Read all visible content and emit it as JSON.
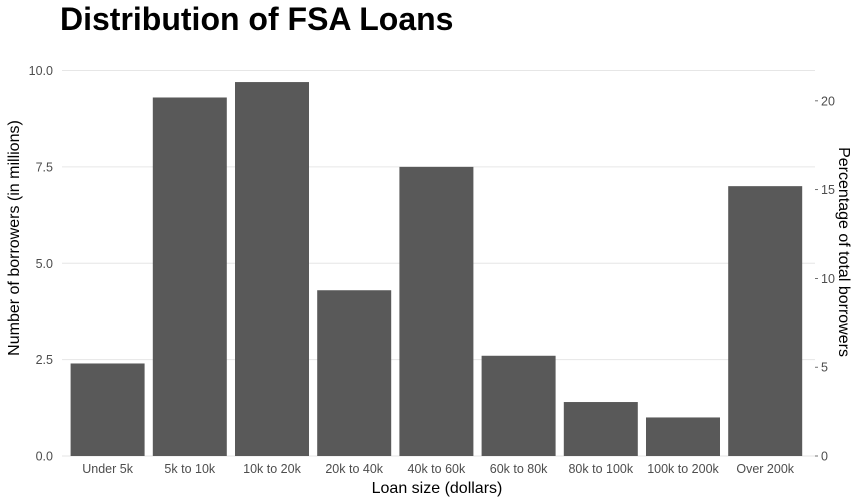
{
  "chart_data": {
    "type": "bar",
    "title": "Distribution of FSA Loans",
    "xlabel": "Loan size (dollars)",
    "ylabel": "Number of borrowers (in millions)",
    "y2label": "Percentage of total borrowers",
    "categories": [
      "Under 5k",
      "5k to 10k",
      "10k to 20k",
      "20k to 40k",
      "40k to 60k",
      "60k to 80k",
      "80k to 100k",
      "100k to 200k",
      "Over 200k"
    ],
    "values": [
      2.4,
      9.3,
      9.7,
      4.3,
      7.5,
      2.6,
      1.4,
      1.0,
      7.0
    ],
    "ylim": [
      0,
      10.0
    ],
    "yticks": [
      "0.0",
      "2.5",
      "5.0",
      "7.5",
      "10.0"
    ],
    "y2lim": [
      0,
      22.3
    ],
    "y2ticks": [
      "0",
      "5",
      "10",
      "15",
      "20"
    ],
    "grid": true,
    "bar_color": "#595959"
  }
}
